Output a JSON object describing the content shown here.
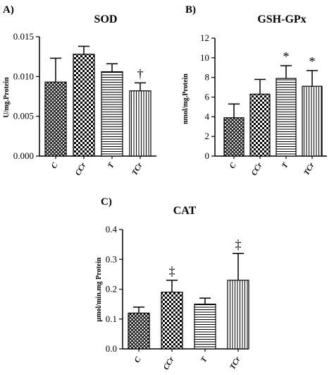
{
  "chart_data": [
    {
      "type": "bar",
      "panel_label": "A)",
      "title": "SOD",
      "ylabel": "U/mg.Protein",
      "categories": [
        "C",
        "CCr",
        "T",
        "TCr"
      ],
      "values": [
        0.0093,
        0.0128,
        0.0106,
        0.0082
      ],
      "errors": [
        0.003,
        0.001,
        0.001,
        0.001
      ],
      "annotations": [
        "",
        "",
        "",
        "†"
      ],
      "ylim": [
        0,
        0.015
      ],
      "yticks": [
        "0.000",
        "0.005",
        "0.010",
        "0.015"
      ],
      "patterns": [
        "crosshatch",
        "checker",
        "horizontal",
        "vertical"
      ],
      "grid": false
    },
    {
      "type": "bar",
      "panel_label": "B)",
      "title": "GSH-GPx",
      "ylabel": "nmol/mg.Protein",
      "categories": [
        "C",
        "CCr",
        "T",
        "TCr"
      ],
      "values": [
        3.9,
        6.3,
        7.9,
        7.1
      ],
      "errors": [
        1.4,
        1.5,
        1.3,
        1.6
      ],
      "annotations": [
        "",
        "",
        "*",
        "*"
      ],
      "ylim": [
        0,
        12
      ],
      "yticks": [
        "0",
        "2",
        "4",
        "6",
        "8",
        "10",
        "12"
      ],
      "patterns": [
        "crosshatch",
        "checker",
        "horizontal",
        "vertical"
      ],
      "grid": false
    },
    {
      "type": "bar",
      "panel_label": "C)",
      "title": "CAT",
      "ylabel": "µmol/min.mg Protein",
      "categories": [
        "C",
        "CCr",
        "T",
        "TCr"
      ],
      "values": [
        0.12,
        0.19,
        0.15,
        0.23
      ],
      "errors": [
        0.02,
        0.04,
        0.02,
        0.09
      ],
      "annotations": [
        "",
        "‡",
        "",
        "‡"
      ],
      "ylim": [
        0,
        0.4
      ],
      "yticks": [
        "0.0",
        "0.1",
        "0.2",
        "0.3",
        "0.4"
      ],
      "patterns": [
        "crosshatch",
        "checker",
        "horizontal",
        "vertical"
      ],
      "grid": false
    }
  ]
}
